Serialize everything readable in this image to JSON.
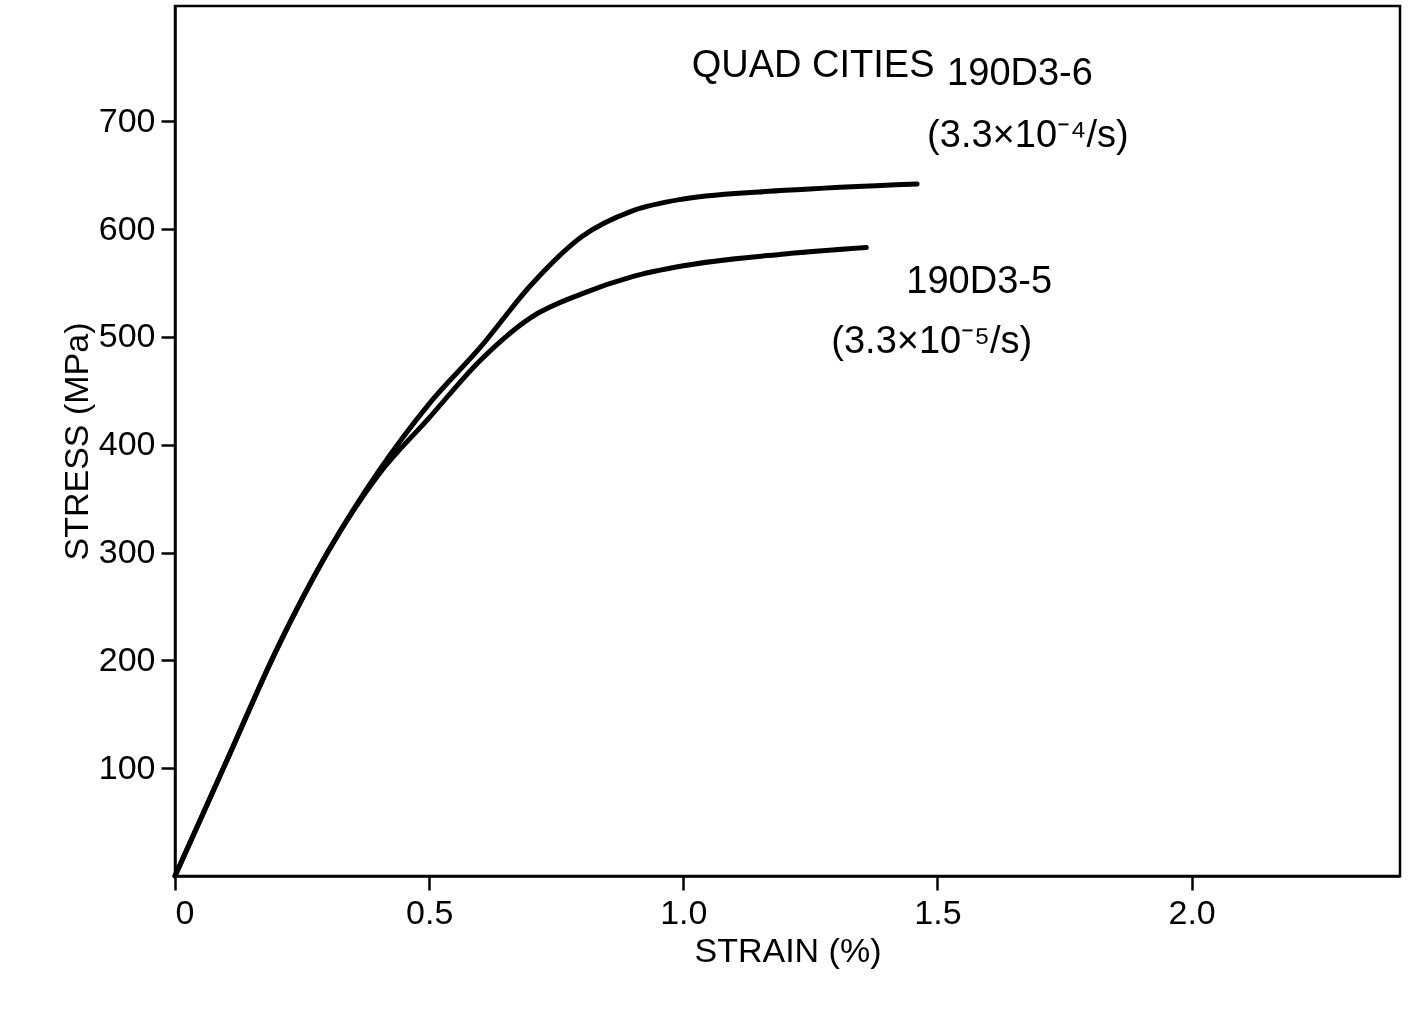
{
  "chart_data": {
    "type": "line",
    "xlabel": "STRAIN (%)",
    "ylabel": "STRESS (MPa)",
    "annotations": [
      "QUAD CITIES",
      {
        "text": "(3.3×10⁻⁴/s)",
        "x": 1.46,
        "y": 642
      },
      {
        "text": "(3.3×10⁻⁵/s)",
        "x": 1.36,
        "y": 583
      }
    ],
    "series": [
      {
        "name": "190D3-6",
        "color": "#000000",
        "x": [
          0,
          0.1,
          0.2,
          0.3,
          0.4,
          0.5,
          0.6,
          0.7,
          0.8,
          0.9,
          1.0,
          1.2,
          1.46
        ],
        "values": [
          0,
          105,
          210,
          300,
          375,
          438,
          490,
          548,
          593,
          617,
          628,
          636,
          642
        ]
      },
      {
        "name": "190D3-5",
        "color": "#000000",
        "x": [
          0,
          0.1,
          0.2,
          0.3,
          0.4,
          0.5,
          0.6,
          0.7,
          0.8,
          0.9,
          1.0,
          1.2,
          1.36
        ],
        "values": [
          0,
          105,
          210,
          300,
          372,
          425,
          478,
          518,
          540,
          556,
          566,
          577,
          583
        ]
      }
    ],
    "xlim": [
      0,
      2.41
    ],
    "ylim": [
      0,
      807
    ],
    "xticks": [
      0,
      0.5,
      {
        "value": 1,
        "label": "1.0"
      },
      1.5,
      {
        "value": 2,
        "label": "2.0"
      }
    ],
    "yticks": [
      100,
      200,
      300,
      400,
      500,
      600,
      700
    ],
    "grid": false,
    "marker": "none",
    "line_style": "solid"
  }
}
